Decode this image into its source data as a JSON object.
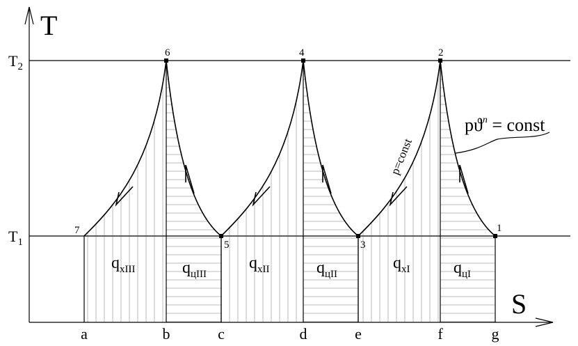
{
  "axes": {
    "y_label": "T",
    "x_label": "S"
  },
  "levels": [
    {
      "label": "T",
      "sub": "2"
    },
    {
      "label": "T",
      "sub": "1"
    }
  ],
  "points": [
    "1",
    "2",
    "3",
    "4",
    "5",
    "6",
    "7"
  ],
  "stations": [
    "a",
    "b",
    "c",
    "d",
    "e",
    "f",
    "g"
  ],
  "areas": [
    {
      "label": "q",
      "sub": "хIII"
    },
    {
      "label": "q",
      "sub": "цIII"
    },
    {
      "label": "q",
      "sub": "хII"
    },
    {
      "label": "q",
      "sub": "цII"
    },
    {
      "label": "q",
      "sub": "хI"
    },
    {
      "label": "q",
      "sub": "цI"
    }
  ],
  "annotations": {
    "process": "p=const",
    "polytrope_base": "pϑ",
    "polytrope_exp": "n",
    "polytrope_rhs": " = const"
  }
}
